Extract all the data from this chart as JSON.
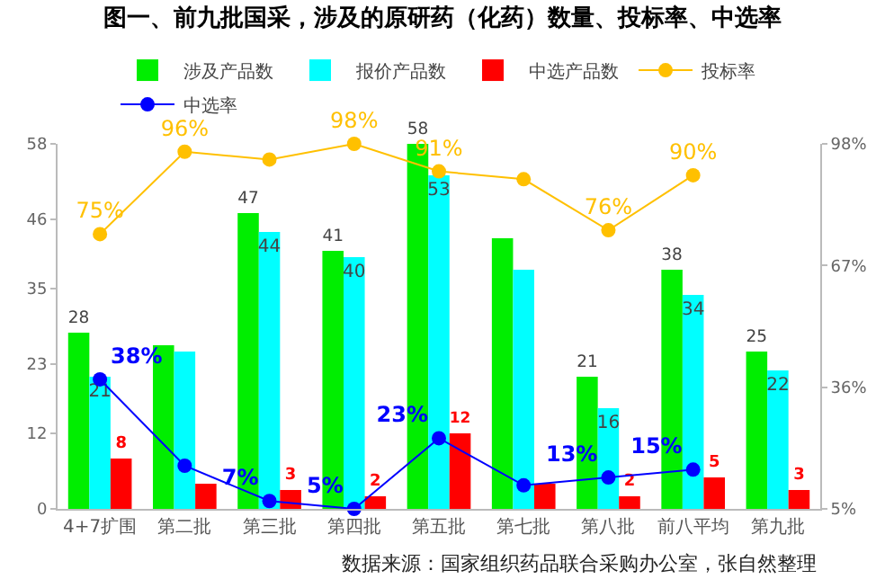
{
  "chart_data": {
    "type": "bar",
    "title": "图一、前九批国采，涉及的原研药（化药）数量、投标率、中选率",
    "categories": [
      "4+7扩围",
      "第二批",
      "第三批",
      "第四批",
      "第五批",
      "第七批",
      "第八批",
      "前八平均",
      "第九批"
    ],
    "series": [
      {
        "name": "涉及产品数",
        "color": "#00ee00",
        "values": [
          28,
          26,
          47,
          41,
          58,
          43,
          21,
          38,
          25
        ],
        "value_labels": [
          "28",
          null,
          "47",
          "41",
          "58",
          null,
          "21",
          "38",
          "25"
        ]
      },
      {
        "name": "报价产品数",
        "color": "#00ffff",
        "values": [
          21,
          25,
          44,
          40,
          53,
          38,
          16,
          34,
          22
        ],
        "value_labels": [
          "21",
          null,
          "44",
          "40",
          "53",
          null,
          "16",
          "34",
          "22"
        ]
      },
      {
        "name": "中选产品数",
        "color": "#ff0000",
        "values": [
          8,
          4,
          3,
          2,
          12,
          4,
          2,
          5,
          3
        ],
        "value_labels": [
          "8",
          null,
          "3",
          "2",
          "12",
          null,
          "2",
          "5",
          "3"
        ]
      },
      {
        "name": "投标率",
        "type": "line",
        "axis": "y2",
        "color": "#ffc000",
        "values": [
          75,
          96,
          94,
          98,
          91,
          89,
          76,
          90,
          null
        ],
        "value_labels": [
          "75%",
          "96%",
          null,
          "98%",
          "91%",
          null,
          "76%",
          "90%",
          null
        ]
      },
      {
        "name": "中选率",
        "type": "line",
        "axis": "y2",
        "color": "#0000ff",
        "values": [
          38,
          16,
          7,
          5,
          23,
          11,
          13,
          15,
          null
        ],
        "value_labels": [
          "38%",
          null,
          "7%",
          "5%",
          "23%",
          null,
          "13%",
          "15%",
          null
        ]
      }
    ],
    "ylim": [
      0,
      58
    ],
    "yticks": [
      0,
      12,
      23,
      35,
      46,
      58
    ],
    "y2lim": [
      5,
      98
    ],
    "y2ticks": [
      {
        "value": 5,
        "label": "5%"
      },
      {
        "value": 36,
        "label": "36%"
      },
      {
        "value": 67,
        "label": "67%"
      },
      {
        "value": 98,
        "label": "98%"
      }
    ],
    "marker": "circle",
    "grid": false,
    "legend": "top",
    "annotations": [
      "数据来源：国家组织药品联合采购办公室，张自然整理"
    ]
  }
}
